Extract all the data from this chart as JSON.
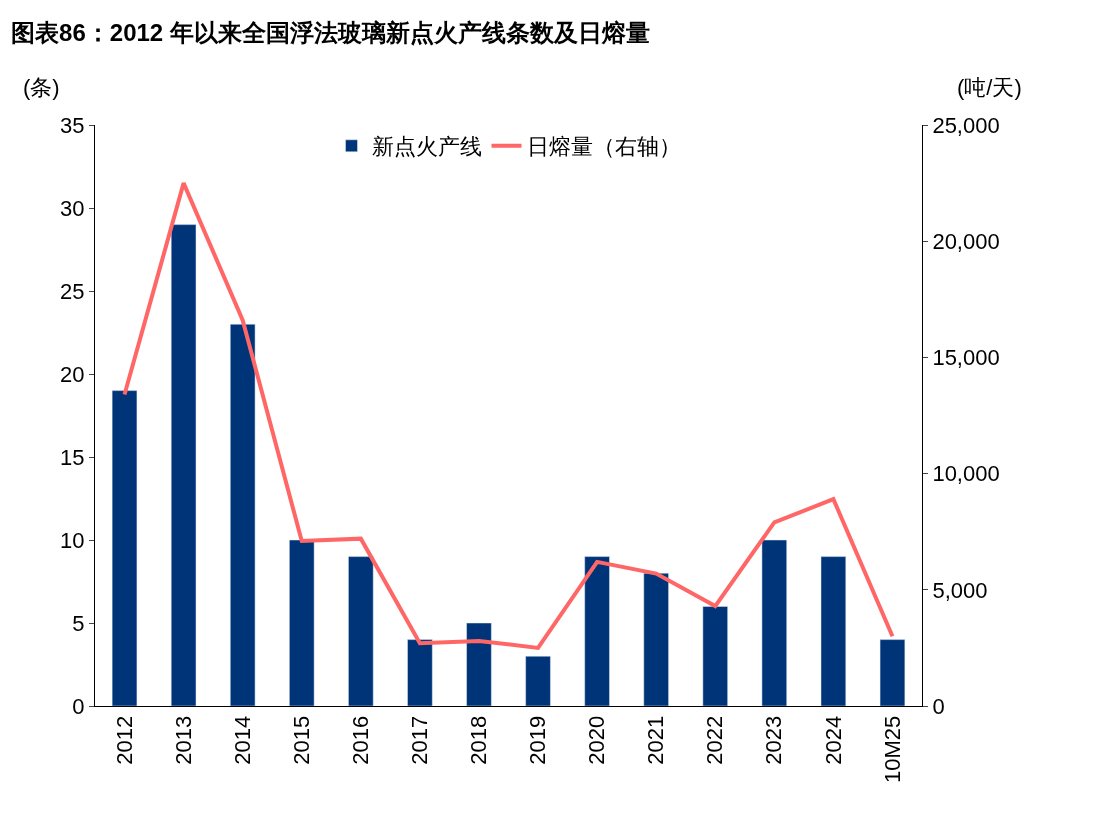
{
  "chart_data": {
    "type": "bar",
    "title": "图表86：2012 年以来全国浮法玻璃新点火产线条数及日熔量",
    "ylabel": "(条)",
    "y2label": "(吨/天)",
    "categories": [
      "2012",
      "2013",
      "2014",
      "2015",
      "2016",
      "2017",
      "2018",
      "2019",
      "2020",
      "2021",
      "2022",
      "2023",
      "2024",
      "10M25"
    ],
    "series": [
      {
        "name": "新点火产线",
        "color": "#003478",
        "values": [
          19,
          29,
          23,
          10,
          9,
          4,
          5,
          3,
          9,
          8,
          6,
          10,
          9,
          4
        ]
      },
      {
        "name": "日熔量（右轴）",
        "type": "line",
        "axis": "y2",
        "color": "#ff6666",
        "values": [
          13400,
          22500,
          16600,
          7100,
          7200,
          2700,
          2800,
          2500,
          6200,
          5700,
          4300,
          7900,
          8900,
          3000
        ]
      }
    ],
    "ylim": [
      0,
      35
    ],
    "yticks": [
      0,
      5,
      10,
      15,
      20,
      25,
      30,
      35
    ],
    "y2lim": [
      0,
      25000
    ],
    "y2ticks": [
      {
        "value": 0,
        "label": "0"
      },
      {
        "value": 5000,
        "label": "5,000"
      },
      {
        "value": 10000,
        "label": "10,000"
      },
      {
        "value": 15000,
        "label": "15,000"
      },
      {
        "value": 20000,
        "label": "20,000"
      },
      {
        "value": 25000,
        "label": "25,000"
      }
    ],
    "legend": "top",
    "marker": "none",
    "line_style": "solid"
  }
}
